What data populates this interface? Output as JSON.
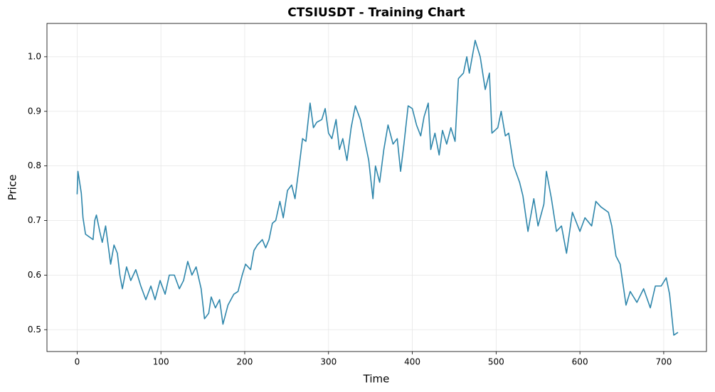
{
  "chart_data": {
    "type": "line",
    "title": "CTSIUSDT - Training Chart",
    "x_label": "Time",
    "y_label": "Price",
    "grid": true,
    "xlim": [
      -36,
      751
    ],
    "ylim": [
      0.46,
      1.061
    ],
    "xticks": [
      0,
      100,
      200,
      300,
      400,
      500,
      600,
      700
    ],
    "yticks": [
      0.5,
      0.6,
      0.7,
      0.8,
      0.9,
      {
        "value": 1,
        "label": "1.0"
      }
    ],
    "x": [
      0,
      1,
      5,
      7,
      10,
      19,
      21,
      23,
      27,
      30,
      34,
      40,
      44,
      48,
      51,
      54,
      59,
      64,
      70,
      76,
      82,
      88,
      93,
      99,
      105,
      110,
      116,
      122,
      127,
      132,
      137,
      142,
      148,
      152,
      157,
      160,
      165,
      170,
      174,
      180,
      187,
      192,
      197,
      201,
      207,
      211,
      215,
      221,
      225,
      229,
      233,
      237,
      242,
      246,
      251,
      256,
      260,
      265,
      269,
      273,
      278,
      282,
      286,
      292,
      296,
      300,
      304,
      309,
      313,
      317,
      322,
      327,
      332,
      338,
      344,
      348,
      353,
      356,
      361,
      366,
      371,
      377,
      382,
      386,
      390,
      395,
      400,
      405,
      410,
      414,
      419,
      422,
      427,
      432,
      436,
      441,
      446,
      451,
      455,
      461,
      465,
      468,
      475,
      481,
      487,
      492,
      495,
      502,
      506,
      511,
      515,
      521,
      528,
      532,
      538,
      545,
      550,
      557,
      560,
      566,
      572,
      578,
      584,
      591,
      600,
      606,
      614,
      619,
      625,
      634,
      638,
      643,
      648,
      655,
      660,
      668,
      676,
      684,
      690,
      697,
      703,
      707,
      712,
      717
    ],
    "series": [
      {
        "name": "Price",
        "color": "#2e86ab",
        "values": [
          0.748,
          0.79,
          0.75,
          0.705,
          0.675,
          0.665,
          0.7,
          0.71,
          0.68,
          0.66,
          0.69,
          0.62,
          0.655,
          0.64,
          0.6,
          0.575,
          0.615,
          0.59,
          0.61,
          0.58,
          0.555,
          0.58,
          0.555,
          0.59,
          0.565,
          0.6,
          0.6,
          0.575,
          0.59,
          0.625,
          0.6,
          0.615,
          0.575,
          0.52,
          0.53,
          0.56,
          0.54,
          0.555,
          0.51,
          0.545,
          0.565,
          0.57,
          0.6,
          0.62,
          0.61,
          0.645,
          0.655,
          0.665,
          0.65,
          0.665,
          0.695,
          0.7,
          0.735,
          0.705,
          0.755,
          0.765,
          0.74,
          0.8,
          0.85,
          0.845,
          0.915,
          0.87,
          0.88,
          0.885,
          0.905,
          0.86,
          0.85,
          0.885,
          0.83,
          0.85,
          0.81,
          0.87,
          0.91,
          0.885,
          0.84,
          0.81,
          0.74,
          0.8,
          0.77,
          0.83,
          0.875,
          0.84,
          0.85,
          0.79,
          0.84,
          0.91,
          0.905,
          0.875,
          0.855,
          0.89,
          0.915,
          0.83,
          0.86,
          0.82,
          0.865,
          0.84,
          0.87,
          0.845,
          0.96,
          0.97,
          1.0,
          0.97,
          1.03,
          1.0,
          0.94,
          0.97,
          0.86,
          0.87,
          0.9,
          0.855,
          0.86,
          0.8,
          0.77,
          0.745,
          0.68,
          0.74,
          0.69,
          0.73,
          0.79,
          0.74,
          0.68,
          0.69,
          0.64,
          0.715,
          0.68,
          0.705,
          0.69,
          0.735,
          0.725,
          0.715,
          0.69,
          0.635,
          0.62,
          0.545,
          0.57,
          0.55,
          0.575,
          0.54,
          0.58,
          0.58,
          0.595,
          0.565,
          0.49,
          0.495
        ]
      }
    ]
  }
}
